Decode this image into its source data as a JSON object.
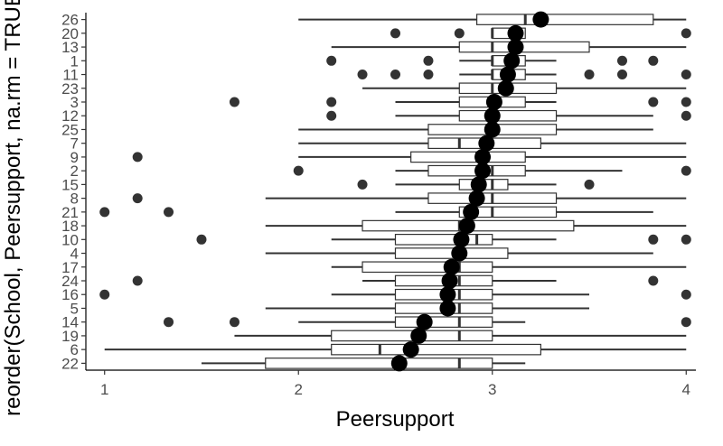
{
  "chart_data": {
    "type": "boxplot",
    "orientation": "horizontal",
    "xlabel": "Peersupport",
    "ylabel": "reorder(School, Peersupport, na.rm = TRUE)",
    "xlim": [
      0.95,
      4.05
    ],
    "xticks": [
      1,
      2,
      3,
      4
    ],
    "grid": false,
    "colors": {
      "box_fill": "#ffffff",
      "line": "#333333",
      "mean_point": "#000000"
    },
    "schools": [
      {
        "school": "22",
        "lower": 1.5,
        "q1": 1.83,
        "median": 2.83,
        "q3": 3.0,
        "upper": 3.17,
        "outliers": [],
        "mean": 2.52
      },
      {
        "school": "6",
        "lower": 1.0,
        "q1": 2.17,
        "median": 2.42,
        "q3": 3.25,
        "upper": 4.0,
        "outliers": [],
        "mean": 2.58
      },
      {
        "school": "19",
        "lower": 1.67,
        "q1": 2.17,
        "median": 2.83,
        "q3": 3.0,
        "upper": 4.0,
        "outliers": [],
        "mean": 2.62
      },
      {
        "school": "14",
        "lower": 2.0,
        "q1": 2.5,
        "median": 2.83,
        "q3": 3.0,
        "upper": 3.17,
        "outliers": [
          1.33,
          1.67,
          4.0
        ],
        "mean": 2.65
      },
      {
        "school": "5",
        "lower": 1.83,
        "q1": 2.5,
        "median": 2.83,
        "q3": 3.0,
        "upper": 3.5,
        "outliers": [],
        "mean": 2.77
      },
      {
        "school": "16",
        "lower": 2.17,
        "q1": 2.5,
        "median": 2.83,
        "q3": 3.0,
        "upper": 3.5,
        "outliers": [
          1.0,
          4.0
        ],
        "mean": 2.77
      },
      {
        "school": "24",
        "lower": 2.33,
        "q1": 2.5,
        "median": 2.83,
        "q3": 3.0,
        "upper": 3.33,
        "outliers": [
          1.17,
          3.83
        ],
        "mean": 2.78
      },
      {
        "school": "17",
        "lower": 2.17,
        "q1": 2.33,
        "median": 2.83,
        "q3": 3.0,
        "upper": 4.0,
        "outliers": [],
        "mean": 2.79
      },
      {
        "school": "4",
        "lower": 1.83,
        "q1": 2.5,
        "median": 2.83,
        "q3": 3.08,
        "upper": 3.83,
        "outliers": [],
        "mean": 2.83
      },
      {
        "school": "10",
        "lower": 2.17,
        "q1": 2.5,
        "median": 2.92,
        "q3": 3.0,
        "upper": 3.33,
        "outliers": [
          1.5,
          3.83,
          4.0
        ],
        "mean": 2.84
      },
      {
        "school": "18",
        "lower": 1.83,
        "q1": 2.33,
        "median": 2.83,
        "q3": 3.42,
        "upper": 4.0,
        "outliers": [],
        "mean": 2.87
      },
      {
        "school": "21",
        "lower": 2.5,
        "q1": 2.83,
        "median": 3.0,
        "q3": 3.33,
        "upper": 3.83,
        "outliers": [
          1.0,
          1.33
        ],
        "mean": 2.89
      },
      {
        "school": "8",
        "lower": 1.83,
        "q1": 2.67,
        "median": 3.0,
        "q3": 3.33,
        "upper": 4.0,
        "outliers": [
          1.17
        ],
        "mean": 2.92
      },
      {
        "school": "15",
        "lower": 2.5,
        "q1": 2.83,
        "median": 3.0,
        "q3": 3.08,
        "upper": 3.33,
        "outliers": [
          2.33,
          3.5
        ],
        "mean": 2.93
      },
      {
        "school": "2",
        "lower": 2.5,
        "q1": 2.67,
        "median": 3.0,
        "q3": 3.17,
        "upper": 3.67,
        "outliers": [
          2.0,
          4.0
        ],
        "mean": 2.95
      },
      {
        "school": "9",
        "lower": 2.0,
        "q1": 2.58,
        "median": 2.92,
        "q3": 3.17,
        "upper": 4.0,
        "outliers": [
          1.17
        ],
        "mean": 2.95
      },
      {
        "school": "7",
        "lower": 2.0,
        "q1": 2.67,
        "median": 2.83,
        "q3": 3.25,
        "upper": 4.0,
        "outliers": [],
        "mean": 2.97
      },
      {
        "school": "25",
        "lower": 2.0,
        "q1": 2.67,
        "median": 3.0,
        "q3": 3.33,
        "upper": 3.83,
        "outliers": [],
        "mean": 3.0
      },
      {
        "school": "12",
        "lower": 2.5,
        "q1": 2.83,
        "median": 3.0,
        "q3": 3.33,
        "upper": 3.83,
        "outliers": [
          2.17,
          4.0
        ],
        "mean": 3.0
      },
      {
        "school": "3",
        "lower": 2.5,
        "q1": 2.83,
        "median": 3.0,
        "q3": 3.17,
        "upper": 3.33,
        "outliers": [
          1.67,
          2.17,
          3.83,
          4.0
        ],
        "mean": 3.01
      },
      {
        "school": "23",
        "lower": 2.33,
        "q1": 2.83,
        "median": 3.0,
        "q3": 3.33,
        "upper": 4.0,
        "outliers": [],
        "mean": 3.07
      },
      {
        "school": "11",
        "lower": 2.83,
        "q1": 3.0,
        "median": 3.0,
        "q3": 3.17,
        "upper": 3.33,
        "outliers": [
          2.33,
          2.5,
          2.67,
          3.5,
          3.67,
          4.0
        ],
        "mean": 3.08
      },
      {
        "school": "1",
        "lower": 2.83,
        "q1": 3.0,
        "median": 3.0,
        "q3": 3.17,
        "upper": 3.33,
        "outliers": [
          2.17,
          2.67,
          3.67,
          3.83
        ],
        "mean": 3.1
      },
      {
        "school": "13",
        "lower": 2.17,
        "q1": 2.83,
        "median": 3.0,
        "q3": 3.5,
        "upper": 4.0,
        "outliers": [],
        "mean": 3.12
      },
      {
        "school": "20",
        "lower": 3.0,
        "q1": 3.0,
        "median": 3.0,
        "q3": 3.17,
        "upper": 3.17,
        "outliers": [
          2.5,
          2.83,
          4.0
        ],
        "mean": 3.12
      },
      {
        "school": "26",
        "lower": 2.0,
        "q1": 2.92,
        "median": 3.17,
        "q3": 3.83,
        "upper": 4.0,
        "outliers": [],
        "mean": 3.25
      }
    ]
  }
}
